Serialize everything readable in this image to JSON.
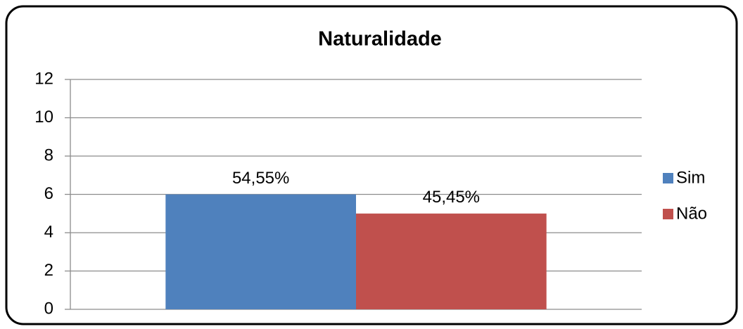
{
  "chart_data": {
    "type": "bar",
    "title": "Naturalidade",
    "categories": [
      null
    ],
    "series": [
      {
        "name": "Sim",
        "color": "#4f81bd",
        "values": [
          6
        ]
      },
      {
        "name": "Não",
        "color": "#c0504d",
        "values": [
          5
        ]
      }
    ],
    "annotations": [
      "54,55%",
      "45,45%"
    ],
    "ylim": [
      0,
      12
    ],
    "yticks": [
      0,
      2,
      4,
      6,
      8,
      10,
      12
    ],
    "grid": true,
    "legend": "right"
  }
}
